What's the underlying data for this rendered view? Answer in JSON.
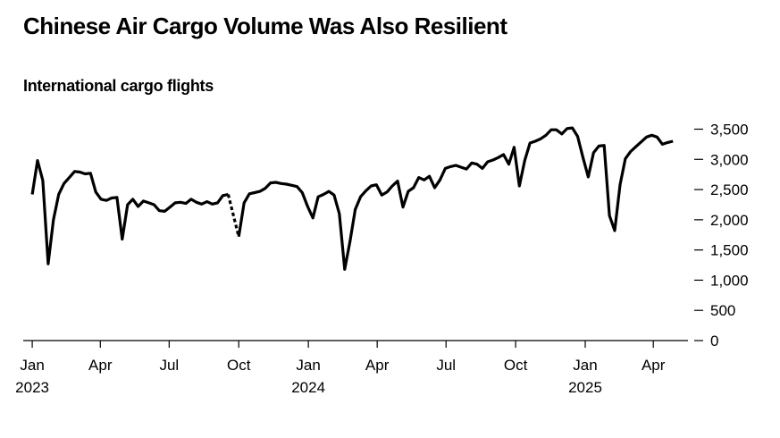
{
  "title": "Chinese Air Cargo Volume Was Also Resilient",
  "subtitle": "International cargo flights",
  "chart_data": {
    "type": "line",
    "title": "Chinese Air Cargo Volume Was Also Resilient",
    "subtitle": "International cargo flights",
    "xlabel": "",
    "ylabel": "",
    "ylim": [
      0,
      3500
    ],
    "yticks": [
      0,
      500,
      1000,
      1500,
      2000,
      2500,
      3000,
      3500
    ],
    "ytick_labels": [
      "0",
      "500",
      "1,000",
      "1,500",
      "2,000",
      "2,500",
      "3,000",
      "3,500"
    ],
    "y_axis_side": "right",
    "grid": false,
    "x_domain": [
      "2022-12-26",
      "2025-05-05"
    ],
    "xticks": [
      {
        "date": "2023-01-01",
        "label": "Jan",
        "year": "2023"
      },
      {
        "date": "2023-04-01",
        "label": "Apr",
        "year": ""
      },
      {
        "date": "2023-07-01",
        "label": "Jul",
        "year": ""
      },
      {
        "date": "2023-10-01",
        "label": "Oct",
        "year": ""
      },
      {
        "date": "2024-01-01",
        "label": "Jan",
        "year": "2024"
      },
      {
        "date": "2024-04-01",
        "label": "Apr",
        "year": ""
      },
      {
        "date": "2024-07-01",
        "label": "Jul",
        "year": ""
      },
      {
        "date": "2024-10-01",
        "label": "Oct",
        "year": ""
      },
      {
        "date": "2025-01-01",
        "label": "Jan",
        "year": "2025"
      },
      {
        "date": "2025-04-01",
        "label": "Apr",
        "year": ""
      }
    ],
    "series": [
      {
        "name": "International cargo flights",
        "color": "#000000",
        "points": [
          [
            "2023-01-01",
            2420
          ],
          [
            "2023-01-08",
            2980
          ],
          [
            "2023-01-15",
            2650
          ],
          [
            "2023-01-22",
            1270
          ],
          [
            "2023-01-29",
            2000
          ],
          [
            "2023-02-05",
            2420
          ],
          [
            "2023-02-12",
            2600
          ],
          [
            "2023-02-19",
            2700
          ],
          [
            "2023-02-26",
            2800
          ],
          [
            "2023-03-05",
            2790
          ],
          [
            "2023-03-12",
            2760
          ],
          [
            "2023-03-19",
            2770
          ],
          [
            "2023-03-26",
            2460
          ],
          [
            "2023-04-02",
            2340
          ],
          [
            "2023-04-09",
            2320
          ],
          [
            "2023-04-16",
            2360
          ],
          [
            "2023-04-23",
            2370
          ],
          [
            "2023-04-30",
            1680
          ],
          [
            "2023-05-07",
            2250
          ],
          [
            "2023-05-14",
            2340
          ],
          [
            "2023-05-21",
            2220
          ],
          [
            "2023-05-28",
            2310
          ],
          [
            "2023-06-04",
            2280
          ],
          [
            "2023-06-11",
            2250
          ],
          [
            "2023-06-18",
            2150
          ],
          [
            "2023-06-25",
            2140
          ],
          [
            "2023-07-02",
            2210
          ],
          [
            "2023-07-09",
            2280
          ],
          [
            "2023-07-16",
            2290
          ],
          [
            "2023-07-23",
            2270
          ],
          [
            "2023-07-30",
            2340
          ],
          [
            "2023-08-06",
            2290
          ],
          [
            "2023-08-13",
            2260
          ],
          [
            "2023-08-20",
            2300
          ],
          [
            "2023-08-27",
            2260
          ],
          [
            "2023-09-03",
            2280
          ],
          [
            "2023-09-10",
            2400
          ],
          [
            "2023-09-17",
            2420
          ]
        ]
      },
      {
        "name": "International cargo flights (gap)",
        "color": "#000000",
        "style": "dashed",
        "points": [
          [
            "2023-09-17",
            2420
          ],
          [
            "2023-10-01",
            1720
          ]
        ]
      },
      {
        "name": "International cargo flights (cont.)",
        "color": "#000000",
        "points": [
          [
            "2023-10-01",
            1720
          ],
          [
            "2023-10-08",
            2280
          ],
          [
            "2023-10-15",
            2430
          ],
          [
            "2023-10-22",
            2450
          ],
          [
            "2023-10-29",
            2470
          ],
          [
            "2023-11-05",
            2520
          ],
          [
            "2023-11-12",
            2610
          ],
          [
            "2023-11-19",
            2620
          ],
          [
            "2023-11-26",
            2600
          ],
          [
            "2023-12-03",
            2590
          ],
          [
            "2023-12-10",
            2570
          ],
          [
            "2023-12-17",
            2550
          ],
          [
            "2023-12-24",
            2450
          ],
          [
            "2023-12-31",
            2220
          ],
          [
            "2024-01-07",
            2030
          ],
          [
            "2024-01-14",
            2380
          ],
          [
            "2024-01-21",
            2420
          ],
          [
            "2024-01-28",
            2470
          ],
          [
            "2024-02-04",
            2410
          ],
          [
            "2024-02-11",
            2100
          ],
          [
            "2024-02-18",
            1180
          ],
          [
            "2024-02-25",
            1640
          ],
          [
            "2024-03-03",
            2170
          ],
          [
            "2024-03-10",
            2380
          ],
          [
            "2024-03-17",
            2480
          ],
          [
            "2024-03-24",
            2560
          ],
          [
            "2024-03-31",
            2580
          ],
          [
            "2024-04-07",
            2410
          ],
          [
            "2024-04-14",
            2460
          ],
          [
            "2024-04-21",
            2560
          ],
          [
            "2024-04-28",
            2640
          ],
          [
            "2024-05-05",
            2210
          ],
          [
            "2024-05-12",
            2470
          ],
          [
            "2024-05-19",
            2530
          ],
          [
            "2024-05-26",
            2700
          ],
          [
            "2024-06-02",
            2660
          ],
          [
            "2024-06-09",
            2720
          ],
          [
            "2024-06-16",
            2530
          ],
          [
            "2024-06-23",
            2660
          ],
          [
            "2024-06-30",
            2850
          ],
          [
            "2024-07-07",
            2880
          ],
          [
            "2024-07-14",
            2900
          ],
          [
            "2024-07-21",
            2870
          ],
          [
            "2024-07-28",
            2840
          ],
          [
            "2024-08-04",
            2940
          ],
          [
            "2024-08-11",
            2920
          ],
          [
            "2024-08-18",
            2850
          ],
          [
            "2024-08-25",
            2960
          ],
          [
            "2024-09-01",
            2990
          ],
          [
            "2024-09-08",
            3030
          ],
          [
            "2024-09-15",
            3080
          ],
          [
            "2024-09-22",
            2920
          ],
          [
            "2024-09-29",
            3200
          ],
          [
            "2024-10-06",
            2560
          ],
          [
            "2024-10-13",
            2980
          ],
          [
            "2024-10-20",
            3270
          ],
          [
            "2024-10-27",
            3300
          ],
          [
            "2024-11-03",
            3340
          ],
          [
            "2024-11-10",
            3400
          ],
          [
            "2024-11-17",
            3490
          ],
          [
            "2024-11-24",
            3490
          ],
          [
            "2024-12-01",
            3420
          ],
          [
            "2024-12-08",
            3510
          ],
          [
            "2024-12-15",
            3520
          ],
          [
            "2024-12-22",
            3380
          ],
          [
            "2024-12-29",
            3030
          ],
          [
            "2025-01-05",
            2710
          ],
          [
            "2025-01-12",
            3110
          ],
          [
            "2025-01-19",
            3220
          ],
          [
            "2025-01-26",
            3230
          ],
          [
            "2025-02-02",
            2070
          ],
          [
            "2025-02-09",
            1820
          ],
          [
            "2025-02-16",
            2580
          ],
          [
            "2025-02-23",
            3010
          ],
          [
            "2025-03-02",
            3130
          ],
          [
            "2025-03-09",
            3210
          ],
          [
            "2025-03-16",
            3290
          ],
          [
            "2025-03-23",
            3370
          ],
          [
            "2025-03-30",
            3400
          ],
          [
            "2025-04-06",
            3370
          ],
          [
            "2025-04-13",
            3250
          ],
          [
            "2025-04-20",
            3280
          ],
          [
            "2025-04-27",
            3300
          ]
        ]
      }
    ]
  }
}
